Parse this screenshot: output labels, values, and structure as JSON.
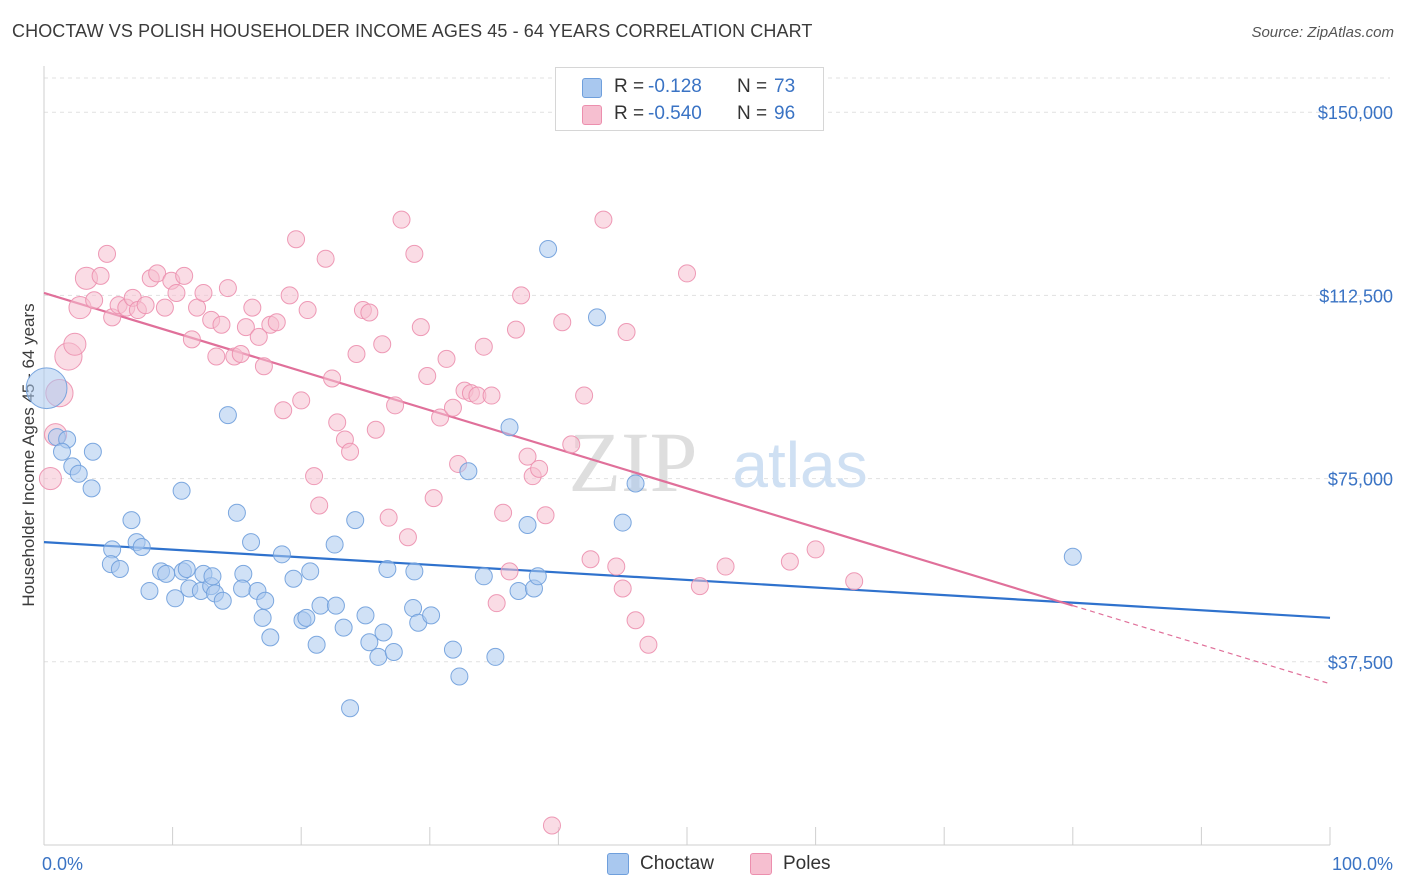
{
  "header": {
    "title": "CHOCTAW VS POLISH HOUSEHOLDER INCOME AGES 45 - 64 YEARS CORRELATION CHART",
    "source": "Source: ZipAtlas.com"
  },
  "legend": {
    "rows": [
      {
        "r_label": "R =",
        "r_value": "-0.128",
        "n_label": "N =",
        "n_value": "73"
      },
      {
        "r_label": "R =",
        "r_value": "-0.540",
        "n_label": "N =",
        "n_value": "96"
      }
    ]
  },
  "bottom_legend": {
    "series_a": "Choctaw",
    "series_b": "Poles"
  },
  "watermark": {
    "zip": "ZIP",
    "atlas": "atlas"
  },
  "colors": {
    "choctaw_fill": "#a9c8ef",
    "choctaw_stroke": "#6f9fdc",
    "choctaw_line": "#2f72cd",
    "poles_fill": "#f6bfd0",
    "poles_stroke": "#ec8fae",
    "poles_line": "#e0709a",
    "axis_label": "#3a73c4",
    "grid": "#e1e1e1"
  },
  "chart_data": {
    "type": "scatter",
    "title": "CHOCTAW VS POLISH HOUSEHOLDER INCOME AGES 45 - 64 YEARS CORRELATION CHART",
    "xlabel": "",
    "ylabel": "Householder Income Ages 45 - 64 years",
    "xlim": [
      0,
      100
    ],
    "ylim": [
      0,
      157000
    ],
    "x_tick_labels": [
      "0.0%",
      "100.0%"
    ],
    "y_ticks": [
      37500,
      75000,
      112500,
      150000
    ],
    "y_tick_labels": [
      "$37,500",
      "$75,000",
      "$112,500",
      "$150,000"
    ],
    "grid": true,
    "legend_position": "top-center",
    "series": [
      {
        "name": "Choctaw",
        "r": -0.128,
        "n": 73,
        "trend": {
          "x": [
            0,
            100
          ],
          "y": [
            62000,
            46500
          ]
        },
        "points": [
          [
            0.2,
            93500,
            2.4
          ],
          [
            1.0,
            83500,
            1
          ],
          [
            1.8,
            83000,
            1
          ],
          [
            1.4,
            80500,
            1
          ],
          [
            2.2,
            77500,
            1
          ],
          [
            2.7,
            76000,
            1
          ],
          [
            3.8,
            80500,
            1
          ],
          [
            3.7,
            73000,
            1
          ],
          [
            5.3,
            60500,
            1
          ],
          [
            5.2,
            57500,
            1
          ],
          [
            5.9,
            56500,
            1
          ],
          [
            6.8,
            66500,
            1
          ],
          [
            7.2,
            62000,
            1
          ],
          [
            7.6,
            61000,
            1
          ],
          [
            9.1,
            56000,
            1
          ],
          [
            8.2,
            52000,
            1
          ],
          [
            9.5,
            55500,
            1
          ],
          [
            10.2,
            50500,
            1
          ],
          [
            10.8,
            56000,
            1
          ],
          [
            11.3,
            52500,
            1
          ],
          [
            10.7,
            72500,
            1
          ],
          [
            11.1,
            56500,
            1
          ],
          [
            12.4,
            55500,
            1
          ],
          [
            12.2,
            52000,
            1
          ],
          [
            13.0,
            53000,
            1
          ],
          [
            13.3,
            51500,
            1
          ],
          [
            13.1,
            55000,
            1
          ],
          [
            13.9,
            50000,
            1
          ],
          [
            15.0,
            68000,
            1
          ],
          [
            14.3,
            88000,
            1
          ],
          [
            15.5,
            55500,
            1
          ],
          [
            15.4,
            52500,
            1
          ],
          [
            16.1,
            62000,
            1
          ],
          [
            16.6,
            52000,
            1
          ],
          [
            17.0,
            46500,
            1
          ],
          [
            17.2,
            50000,
            1
          ],
          [
            17.6,
            42500,
            1
          ],
          [
            18.5,
            59500,
            1
          ],
          [
            19.4,
            54500,
            1
          ],
          [
            20.1,
            46000,
            1
          ],
          [
            20.4,
            46500,
            1
          ],
          [
            20.7,
            56000,
            1
          ],
          [
            21.2,
            41000,
            1
          ],
          [
            21.5,
            49000,
            1
          ],
          [
            22.6,
            61500,
            1
          ],
          [
            22.7,
            49000,
            1
          ],
          [
            23.3,
            44500,
            1
          ],
          [
            24.2,
            66500,
            1
          ],
          [
            25.0,
            47000,
            1
          ],
          [
            25.3,
            41500,
            1
          ],
          [
            26.0,
            38500,
            1
          ],
          [
            26.4,
            43500,
            1
          ],
          [
            26.7,
            56500,
            1
          ],
          [
            27.2,
            39500,
            1
          ],
          [
            28.7,
            48500,
            1
          ],
          [
            28.8,
            56000,
            1
          ],
          [
            29.1,
            45500,
            1
          ],
          [
            30.1,
            47000,
            1
          ],
          [
            31.8,
            40000,
            1
          ],
          [
            32.3,
            34500,
            1
          ],
          [
            33.0,
            76500,
            1
          ],
          [
            34.2,
            55000,
            1
          ],
          [
            35.1,
            38500,
            1
          ],
          [
            36.2,
            85500,
            1
          ],
          [
            36.9,
            52000,
            1
          ],
          [
            37.6,
            65500,
            1
          ],
          [
            38.1,
            52500,
            1
          ],
          [
            38.4,
            55000,
            1
          ],
          [
            39.2,
            122000,
            1
          ],
          [
            43.0,
            108000,
            1
          ],
          [
            45.0,
            66000,
            1
          ],
          [
            46.0,
            74000,
            1
          ],
          [
            80.0,
            59000,
            1
          ],
          [
            23.8,
            28000,
            1
          ]
        ]
      },
      {
        "name": "Poles",
        "r": -0.54,
        "n": 96,
        "trend": {
          "x": [
            0,
            80
          ],
          "y": [
            113000,
            49000
          ]
        },
        "trend_dashed": {
          "x": [
            80,
            100
          ],
          "y": [
            49000,
            33000
          ]
        },
        "points": [
          [
            0.5,
            75000,
            1.3
          ],
          [
            0.9,
            84000,
            1.3
          ],
          [
            1.2,
            92500,
            1.6
          ],
          [
            1.9,
            100000,
            1.6
          ],
          [
            2.4,
            102500,
            1.3
          ],
          [
            2.8,
            110000,
            1.3
          ],
          [
            3.3,
            116000,
            1.3
          ],
          [
            3.9,
            111500,
            1
          ],
          [
            4.4,
            116500,
            1
          ],
          [
            4.9,
            121000,
            1
          ],
          [
            5.3,
            108000,
            1
          ],
          [
            5.8,
            110500,
            1
          ],
          [
            6.4,
            110000,
            1
          ],
          [
            6.9,
            112000,
            1
          ],
          [
            7.3,
            109500,
            1
          ],
          [
            7.9,
            110500,
            1
          ],
          [
            8.3,
            116000,
            1
          ],
          [
            8.8,
            117000,
            1
          ],
          [
            9.4,
            110000,
            1
          ],
          [
            9.9,
            115500,
            1
          ],
          [
            10.3,
            113000,
            1
          ],
          [
            10.9,
            116500,
            1
          ],
          [
            11.5,
            103500,
            1
          ],
          [
            11.9,
            110000,
            1
          ],
          [
            12.4,
            113000,
            1
          ],
          [
            13.0,
            107500,
            1
          ],
          [
            13.4,
            100000,
            1
          ],
          [
            13.8,
            106500,
            1
          ],
          [
            14.3,
            114000,
            1
          ],
          [
            14.8,
            100000,
            1
          ],
          [
            15.3,
            100500,
            1
          ],
          [
            15.7,
            106000,
            1
          ],
          [
            16.2,
            110000,
            1
          ],
          [
            16.7,
            104000,
            1
          ],
          [
            17.1,
            98000,
            1
          ],
          [
            17.6,
            106500,
            1
          ],
          [
            18.1,
            107000,
            1
          ],
          [
            18.6,
            89000,
            1
          ],
          [
            19.1,
            112500,
            1
          ],
          [
            19.6,
            124000,
            1
          ],
          [
            20.0,
            91000,
            1
          ],
          [
            20.5,
            109500,
            1
          ],
          [
            21.0,
            75500,
            1
          ],
          [
            21.4,
            69500,
            1
          ],
          [
            21.9,
            120000,
            1
          ],
          [
            22.4,
            95500,
            1
          ],
          [
            22.8,
            86500,
            1
          ],
          [
            23.4,
            83000,
            1
          ],
          [
            23.8,
            80500,
            1
          ],
          [
            24.3,
            100500,
            1
          ],
          [
            24.8,
            109500,
            1
          ],
          [
            25.3,
            109000,
            1
          ],
          [
            25.8,
            85000,
            1
          ],
          [
            26.3,
            102500,
            1
          ],
          [
            26.8,
            67000,
            1
          ],
          [
            27.3,
            90000,
            1
          ],
          [
            27.8,
            128000,
            1
          ],
          [
            28.3,
            63000,
            1
          ],
          [
            28.8,
            121000,
            1
          ],
          [
            29.3,
            106000,
            1
          ],
          [
            29.8,
            96000,
            1
          ],
          [
            30.3,
            71000,
            1
          ],
          [
            30.8,
            87500,
            1
          ],
          [
            31.3,
            99500,
            1
          ],
          [
            31.8,
            89500,
            1
          ],
          [
            32.2,
            78000,
            1
          ],
          [
            32.7,
            93000,
            1
          ],
          [
            33.2,
            92500,
            1
          ],
          [
            33.7,
            92000,
            1
          ],
          [
            34.2,
            102000,
            1
          ],
          [
            34.8,
            92000,
            1
          ],
          [
            35.2,
            49500,
            1
          ],
          [
            35.7,
            68000,
            1
          ],
          [
            36.2,
            56000,
            1
          ],
          [
            36.7,
            105500,
            1
          ],
          [
            37.1,
            112500,
            1
          ],
          [
            37.6,
            79500,
            1
          ],
          [
            38.0,
            75500,
            1
          ],
          [
            38.5,
            77000,
            1
          ],
          [
            39.0,
            67500,
            1
          ],
          [
            40.3,
            107000,
            1
          ],
          [
            41.0,
            82000,
            1
          ],
          [
            42.0,
            92000,
            1
          ],
          [
            42.5,
            58500,
            1
          ],
          [
            44.5,
            57000,
            1
          ],
          [
            45.0,
            52500,
            1
          ],
          [
            45.3,
            105000,
            1
          ],
          [
            46.0,
            46000,
            1
          ],
          [
            47.0,
            41000,
            1
          ],
          [
            50.0,
            117000,
            1
          ],
          [
            51.0,
            53000,
            1
          ],
          [
            53.0,
            57000,
            1
          ],
          [
            58.0,
            58000,
            1
          ],
          [
            60.0,
            60500,
            1
          ],
          [
            43.5,
            128000,
            1
          ],
          [
            63.0,
            54000,
            1
          ],
          [
            39.5,
            4000,
            1
          ]
        ]
      }
    ]
  }
}
